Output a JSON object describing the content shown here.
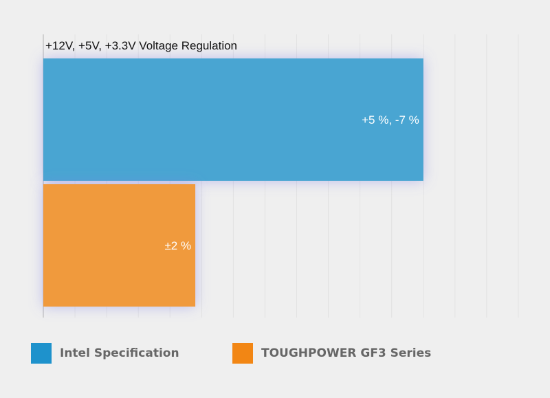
{
  "chart_data": {
    "type": "bar",
    "orientation": "horizontal",
    "title": "+12V, +5V, +3.3V Voltage Regulation",
    "categories": [
      "Intel Specification",
      "TOUGHPOWER GF3 Series"
    ],
    "values": [
      12,
      4.8
    ],
    "data_labels": [
      "+5 %, -7 %",
      "±2 %"
    ],
    "colors": [
      "#4aa5d2",
      "#f09a3e"
    ],
    "xlim": [
      0,
      16
    ],
    "grid": true,
    "legend": "bottom",
    "legend_colors": [
      "#1e92cc",
      "#f28614"
    ]
  }
}
